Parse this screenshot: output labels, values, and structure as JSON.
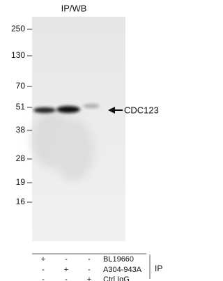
{
  "title": "IP/WB",
  "markers": [
    "250",
    "130",
    "70",
    "51",
    "38",
    "28",
    "19",
    "16"
  ],
  "target": "CDC123",
  "rows": [
    {
      "signs": [
        "+",
        "-",
        "-"
      ],
      "label": "BL19660"
    },
    {
      "signs": [
        "-",
        "+",
        "-"
      ],
      "label": "A304-943A"
    },
    {
      "signs": [
        "-",
        "-",
        "+"
      ],
      "label": "Ctrl IgG"
    }
  ],
  "group_label": "IP"
}
